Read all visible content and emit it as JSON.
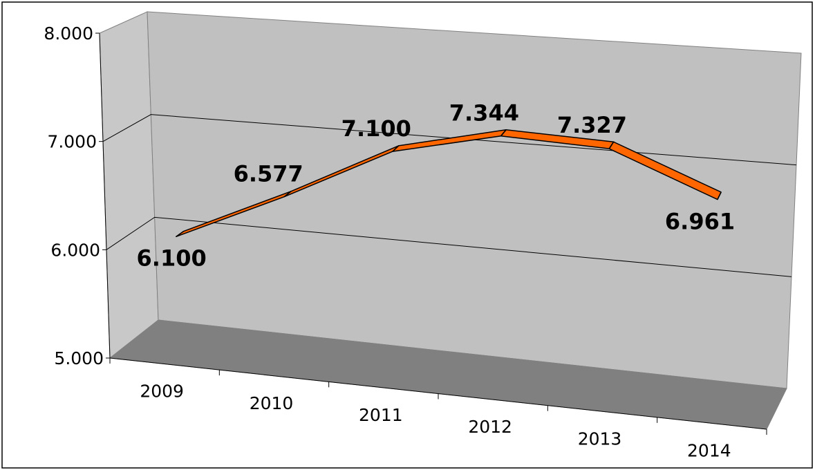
{
  "chart_data": {
    "type": "line",
    "style": "3d-ribbon",
    "categories": [
      "2009",
      "2010",
      "2011",
      "2012",
      "2013",
      "2014"
    ],
    "series": [
      {
        "values": [
          6100,
          6577,
          7100,
          7344,
          7327,
          6961
        ]
      }
    ],
    "data_labels": [
      "6.100",
      "6.577",
      "7.100",
      "7.344",
      "7.327",
      "6.961"
    ],
    "y_ticks": [
      {
        "value": 5000,
        "label": "5.000"
      },
      {
        "value": 6000,
        "label": "6.000"
      },
      {
        "value": 7000,
        "label": "7.000"
      },
      {
        "value": 8000,
        "label": "8.000"
      }
    ],
    "ylim": [
      5000,
      8000
    ],
    "grid": true,
    "legend": "none",
    "colors": {
      "ribbon_fill": "#ff6600",
      "wall": "#c0c0c0",
      "floor": "#808080",
      "side_wall": "#c8c8c8",
      "border": "#000000"
    }
  }
}
